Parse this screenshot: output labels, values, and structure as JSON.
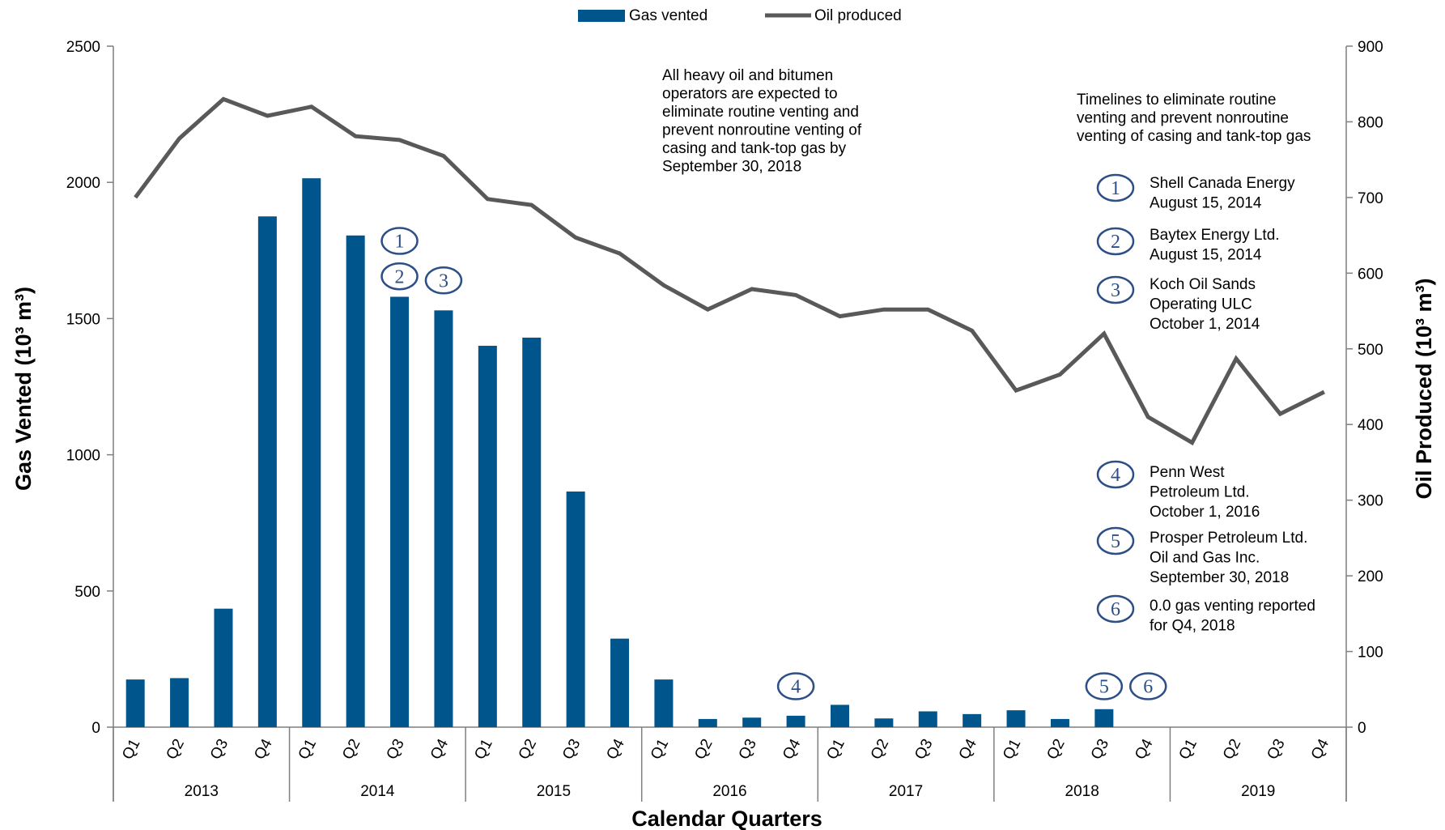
{
  "chart_data": {
    "type": "bar",
    "combo": "bar+line",
    "xlabel": "Calendar Quarters",
    "ylabel": "Gas Vented (10³ m³)",
    "ylabel2": "Oil Produced (10³ m³)",
    "ylim": [
      0,
      2500
    ],
    "y2lim": [
      0,
      900
    ],
    "yticks": [
      "0",
      "500",
      "1000",
      "1500",
      "2000",
      "2500"
    ],
    "y2ticks": [
      "0",
      "100",
      "200",
      "300",
      "400",
      "500",
      "600",
      "700",
      "800",
      "900"
    ],
    "quarters": [
      "Q1",
      "Q2",
      "Q3",
      "Q4"
    ],
    "years": [
      "2013",
      "2014",
      "2015",
      "2016",
      "2017",
      "2018",
      "2019"
    ],
    "categories": [
      "Q1 2013",
      "Q2 2013",
      "Q3 2013",
      "Q4 2013",
      "Q1 2014",
      "Q2 2014",
      "Q3 2014",
      "Q4 2014",
      "Q1 2015",
      "Q2 2015",
      "Q3 2015",
      "Q4 2015",
      "Q1 2016",
      "Q2 2016",
      "Q3 2016",
      "Q4 2016",
      "Q1 2017",
      "Q2 2017",
      "Q3 2017",
      "Q4 2017",
      "Q1 2018",
      "Q2 2018",
      "Q3 2018",
      "Q4 2018",
      "Q1 2019",
      "Q2 2019",
      "Q3 2019",
      "Q4 2019"
    ],
    "legend_position": "top-center",
    "grid": false,
    "series": [
      {
        "name": "Gas vented",
        "type": "bar",
        "axis": "left",
        "color": "#00558c",
        "values": [
          175,
          180,
          435,
          1875,
          2015,
          1805,
          1580,
          1530,
          1400,
          1430,
          865,
          325,
          175,
          30,
          35,
          42,
          82,
          32,
          58,
          48,
          62,
          30,
          66,
          null,
          null,
          null,
          null,
          null
        ]
      },
      {
        "name": "Oil produced",
        "type": "line",
        "axis": "right",
        "color": "#595959",
        "values": [
          700,
          778,
          830,
          808,
          820,
          781,
          776,
          755,
          698,
          690,
          647,
          626,
          584,
          552,
          579,
          571,
          543,
          552,
          552,
          524,
          445,
          466,
          520,
          410,
          376,
          487,
          414,
          443
        ]
      }
    ],
    "markers": [
      {
        "label": "1",
        "category_index": 6,
        "value": 1785
      },
      {
        "label": "2",
        "category_index": 6,
        "value": 1655
      },
      {
        "label": "3",
        "category_index": 7,
        "value": 1640
      },
      {
        "label": "4",
        "category_index": 15,
        "value": 150
      },
      {
        "label": "5",
        "category_index": 22,
        "value": 150
      },
      {
        "label": "6",
        "category_index": 23,
        "value": 150
      }
    ],
    "annotations": {
      "deadline_note": [
        "All heavy oil and bitumen",
        "operators are expected to",
        "eliminate routine venting and",
        "prevent nonroutine venting of",
        "casing and tank-top gas by",
        "September 30, 2018"
      ],
      "timeline_title": [
        "Timelines to eliminate routine",
        "venting and prevent nonroutine",
        "venting of casing and tank-top gas"
      ],
      "timeline_items": [
        {
          "num": "1",
          "lines": [
            "Shell Canada Energy",
            "August 15, 2014"
          ]
        },
        {
          "num": "2",
          "lines": [
            "Baytex Energy Ltd.",
            "August 15, 2014"
          ]
        },
        {
          "num": "3",
          "lines": [
            "Koch Oil Sands",
            "Operating ULC",
            "October 1, 2014"
          ]
        },
        {
          "num": "4",
          "lines": [
            "Penn West",
            "Petroleum Ltd.",
            "October 1, 2016"
          ]
        },
        {
          "num": "5",
          "lines": [
            "Prosper Petroleum Ltd.",
            "Oil and Gas Inc.",
            "September 30, 2018"
          ]
        },
        {
          "num": "6",
          "lines": [
            "0.0 gas venting reported",
            "for Q4, 2018"
          ]
        }
      ]
    }
  }
}
